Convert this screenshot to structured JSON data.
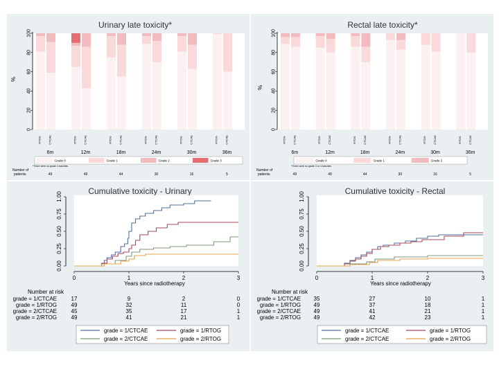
{
  "colors": {
    "grade0": "#fdf0f0",
    "grade1": "#f9d9da",
    "grade2": "#f2bcbe",
    "grade3": "#e36d72",
    "cum_1_ctcae": "#4f6f9f",
    "cum_1_rtog": "#a8495a",
    "cum_2_ctcae": "#7f9a7a",
    "cum_2_rtog": "#e8a04a"
  },
  "chart_data": [
    {
      "type": "bar",
      "stacked": true,
      "title": "Urinary late toxicity*",
      "ylabel": "%",
      "ylim": [
        0,
        100
      ],
      "yticks": [
        0,
        20,
        40,
        60,
        80,
        100
      ],
      "groups": [
        "6m",
        "12m",
        "18m",
        "24m",
        "30m",
        "36m"
      ],
      "bar_labels": [
        "RTOG",
        "CTCAE"
      ],
      "legend": [
        "Grade 0",
        "Grade 1",
        "Grade 2",
        "Grade 3"
      ],
      "legend_position": "bottom",
      "footnote": "*There were no grade 4 toxicities",
      "n_label": [
        "Number of",
        "patients"
      ],
      "n_values": [
        49,
        49,
        44,
        30,
        16,
        5
      ],
      "bars": [
        [
          [
            81,
            16,
            3,
            0
          ],
          [
            59,
            32,
            9,
            0
          ]
        ],
        [
          [
            65,
            22,
            3,
            10
          ],
          [
            43,
            43,
            14,
            0
          ]
        ],
        [
          [
            75,
            22,
            3,
            0
          ],
          [
            55,
            33,
            12,
            0
          ]
        ],
        [
          [
            89,
            8,
            3,
            0
          ],
          [
            70,
            22,
            8,
            0
          ]
        ],
        [
          [
            81,
            16,
            3,
            0
          ],
          [
            63,
            25,
            12,
            0
          ]
        ],
        [
          [
            99,
            1,
            0,
            0
          ],
          [
            60,
            40,
            0,
            0
          ]
        ]
      ]
    },
    {
      "type": "bar",
      "stacked": true,
      "title": "Rectal late toxicity*",
      "ylabel": "%",
      "ylim": [
        0,
        100
      ],
      "yticks": [
        0,
        20,
        40,
        60,
        80,
        100
      ],
      "groups": [
        "6m",
        "12m",
        "18m",
        "24m",
        "30m",
        "36m"
      ],
      "bar_labels": [
        "RTOG",
        "CTCAE"
      ],
      "legend": [
        "Grade 0",
        "Grade 1",
        "Grade 2"
      ],
      "legend_position": "bottom",
      "footnote": "*There were no grade 3 or 4 toxicities",
      "n_label": [
        "Number of",
        "patients"
      ],
      "n_values": [
        49,
        49,
        44,
        30,
        16,
        5
      ],
      "bars": [
        [
          [
            89,
            7,
            4
          ],
          [
            86,
            10,
            4
          ]
        ],
        [
          [
            85,
            12,
            3
          ],
          [
            80,
            14,
            6
          ]
        ],
        [
          [
            86,
            11,
            3
          ],
          [
            70,
            16,
            14
          ]
        ],
        [
          [
            93,
            7,
            0
          ],
          [
            83,
            10,
            7
          ]
        ],
        [
          [
            88,
            12,
            0
          ],
          [
            81,
            19,
            0
          ]
        ],
        [
          [
            100,
            0,
            0
          ],
          [
            80,
            20,
            0
          ]
        ]
      ]
    },
    {
      "type": "line",
      "step": true,
      "title": "Cumulative toxicity - Urinary",
      "xlabel": "Years since radiotherapy",
      "xlim": [
        0,
        3
      ],
      "ylim": [
        0,
        1
      ],
      "xticks": [
        0,
        1,
        2,
        3
      ],
      "yticks": [
        "0.00",
        "0.25",
        "0.50",
        "0.75",
        "1.00"
      ],
      "risk_header": "Number at risk",
      "series": [
        {
          "name": "grade = 1/CTCAE",
          "color_key": "cum_1_ctcae",
          "x": [
            0,
            0.5,
            0.55,
            0.6,
            0.68,
            0.75,
            0.85,
            0.92,
            0.98,
            1.0,
            1.05,
            1.12,
            1.2,
            1.3,
            1.45,
            1.6,
            1.75,
            2.0,
            2.2,
            2.5
          ],
          "y": [
            0,
            0.04,
            0.08,
            0.12,
            0.16,
            0.2,
            0.28,
            0.32,
            0.4,
            0.5,
            0.62,
            0.68,
            0.72,
            0.76,
            0.8,
            0.84,
            0.88,
            0.9,
            0.94,
            0.94
          ],
          "risk": [
            17,
            9,
            2,
            0
          ]
        },
        {
          "name": "grade = 1/RTOG",
          "color_key": "cum_1_rtog",
          "x": [
            0,
            0.5,
            0.6,
            0.7,
            0.8,
            0.9,
            1.0,
            1.05,
            1.12,
            1.2,
            1.35,
            1.5,
            1.7,
            1.9,
            3.0
          ],
          "y": [
            0,
            0.04,
            0.1,
            0.14,
            0.18,
            0.2,
            0.25,
            0.3,
            0.37,
            0.45,
            0.5,
            0.55,
            0.6,
            0.63,
            0.63
          ],
          "risk": [
            49,
            32,
            11,
            0
          ]
        },
        {
          "name": "grade = 2/CTCAE",
          "color_key": "cum_2_ctcae",
          "x": [
            0,
            0.5,
            0.75,
            0.95,
            1.05,
            1.2,
            1.45,
            1.75,
            2.05,
            2.55,
            2.85,
            3.0
          ],
          "y": [
            0,
            0.03,
            0.08,
            0.14,
            0.2,
            0.24,
            0.26,
            0.28,
            0.3,
            0.35,
            0.42,
            0.42
          ],
          "risk": [
            45,
            35,
            17,
            1
          ]
        },
        {
          "name": "grade = 2/RTOG",
          "color_key": "cum_2_rtog",
          "x": [
            0,
            0.55,
            0.85,
            1.0,
            1.1,
            1.3,
            3.0
          ],
          "y": [
            0,
            0.03,
            0.07,
            0.1,
            0.15,
            0.17,
            0.17
          ],
          "risk": [
            49,
            41,
            21,
            1
          ]
        }
      ]
    },
    {
      "type": "line",
      "step": true,
      "title": "Cumulative toxicity - Rectal",
      "xlabel": "Years since radiotherapy",
      "xlim": [
        0,
        3
      ],
      "ylim": [
        0,
        1
      ],
      "xticks": [
        0,
        1,
        2,
        3
      ],
      "yticks": [
        "0.00",
        "0.25",
        "0.50",
        "0.75",
        "1.00"
      ],
      "risk_header": "Number at risk",
      "series": [
        {
          "name": "grade = 1/CTCAE",
          "color_key": "cum_1_ctcae",
          "x": [
            0,
            0.5,
            0.6,
            0.7,
            0.8,
            0.9,
            1.0,
            1.1,
            1.2,
            1.4,
            1.6,
            1.8,
            2.0,
            2.2,
            3.0
          ],
          "y": [
            0,
            0.04,
            0.08,
            0.12,
            0.16,
            0.2,
            0.24,
            0.28,
            0.3,
            0.33,
            0.36,
            0.4,
            0.43,
            0.45,
            0.45
          ],
          "risk": [
            35,
            27,
            10,
            1
          ]
        },
        {
          "name": "grade = 1/RTOG",
          "color_key": "cum_1_rtog",
          "x": [
            0,
            0.5,
            0.6,
            0.7,
            0.8,
            0.9,
            1.0,
            1.15,
            1.3,
            1.5,
            1.7,
            1.9,
            2.3,
            2.65,
            3.0
          ],
          "y": [
            0,
            0.03,
            0.07,
            0.1,
            0.14,
            0.18,
            0.24,
            0.28,
            0.3,
            0.33,
            0.35,
            0.38,
            0.43,
            0.48,
            0.48
          ],
          "risk": [
            49,
            37,
            18,
            1
          ]
        },
        {
          "name": "grade = 2/CTCAE",
          "color_key": "cum_2_ctcae",
          "x": [
            0,
            0.6,
            0.9,
            1.05,
            1.4,
            2.0,
            3.0
          ],
          "y": [
            0,
            0.03,
            0.06,
            0.1,
            0.13,
            0.15,
            0.15
          ],
          "risk": [
            49,
            41,
            21,
            1
          ]
        },
        {
          "name": "grade = 2/RTOG",
          "color_key": "cum_2_rtog",
          "x": [
            0,
            0.6,
            0.95,
            1.1,
            1.5,
            2.0,
            3.0
          ],
          "y": [
            0,
            0.02,
            0.05,
            0.08,
            0.1,
            0.11,
            0.11
          ],
          "risk": [
            49,
            42,
            23,
            1
          ]
        }
      ]
    }
  ]
}
